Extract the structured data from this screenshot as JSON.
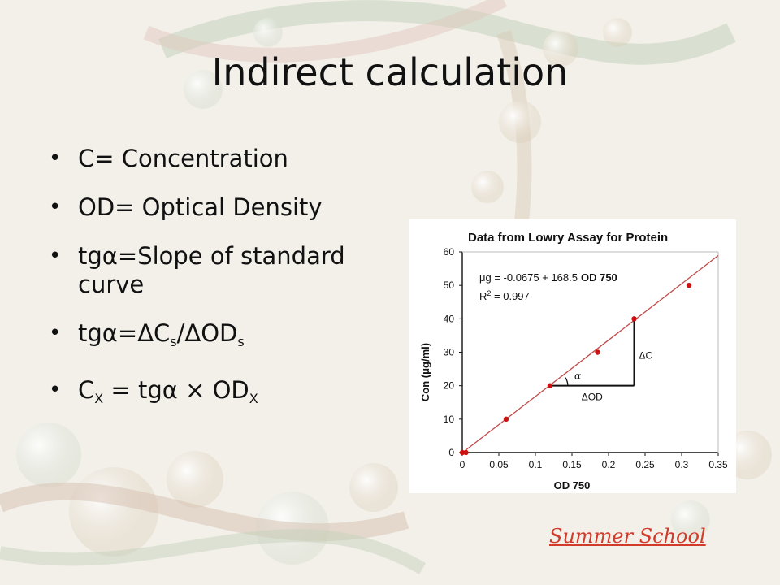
{
  "slide": {
    "title": "Indirect calculation",
    "footer": "Summer School"
  },
  "bullets": {
    "item1": "C= Concentration",
    "item2": "OD= Optical Density",
    "item3_line1": "tgα=Slope of standard",
    "item3_line2": "curve",
    "item4": {
      "a": "tgα=ΔC",
      "sub1": "s",
      "b": "/ΔOD",
      "sub2": "s"
    },
    "item5": {
      "a": "C",
      "sub1": "X",
      "b": " = tgα × OD",
      "sub2": "X"
    }
  },
  "chart_data": {
    "type": "scatter",
    "title": "Data from Lowry Assay for Protein",
    "xlabel": "OD 750",
    "ylabel": "Con (μg/ml)",
    "xlim": [
      0,
      0.35
    ],
    "ylim": [
      0,
      60
    ],
    "x_ticks": [
      "0",
      "0.05",
      "0.1",
      "0.15",
      "0.2",
      "0.25",
      "0.3",
      "0.35"
    ],
    "y_ticks": [
      "0",
      "10",
      "20",
      "30",
      "40",
      "50",
      "60"
    ],
    "grid": false,
    "points": [
      {
        "x": 0.0,
        "y": 0
      },
      {
        "x": 0.005,
        "y": 0
      },
      {
        "x": 0.06,
        "y": 10
      },
      {
        "x": 0.12,
        "y": 20
      },
      {
        "x": 0.185,
        "y": 30
      },
      {
        "x": 0.235,
        "y": 40
      },
      {
        "x": 0.31,
        "y": 50
      }
    ],
    "fit_line": {
      "x": [
        0,
        0.35
      ],
      "y": [
        -0.0675,
        58.9075
      ]
    },
    "equation": {
      "prefix": "μg = -0.0675 + 168.5",
      "suffix": "OD 750"
    },
    "r_squared": {
      "label": "R",
      "sup": "2",
      "value": " = 0.997"
    },
    "annotations": {
      "alpha": "α",
      "delta_c": "ΔC",
      "delta_od": "ΔOD"
    },
    "colors": {
      "points": "#cc1111",
      "fit_line": "#c04a4a",
      "annotations": "#111111"
    }
  }
}
